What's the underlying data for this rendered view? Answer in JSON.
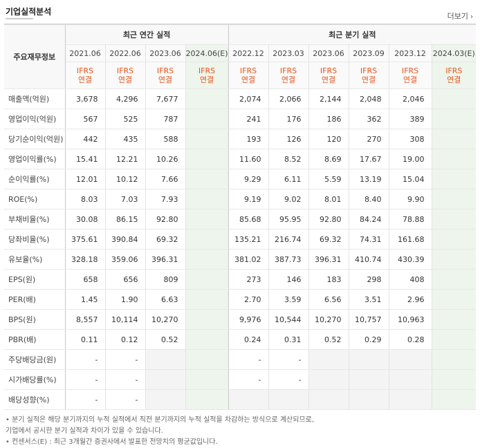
{
  "header": {
    "title": "기업실적분석",
    "more_label": "더보기",
    "more_arrow": "›"
  },
  "table": {
    "label_header": "주요재무정보",
    "annual_group": "최근 연간 실적",
    "quarter_group": "최근 분기 실적",
    "periods": [
      {
        "date": "2021.06",
        "std": "IFRS",
        "basis": "연결",
        "estimate": false,
        "group": "annual"
      },
      {
        "date": "2022.06",
        "std": "IFRS",
        "basis": "연결",
        "estimate": false,
        "group": "annual"
      },
      {
        "date": "2023.06",
        "std": "IFRS",
        "basis": "연결",
        "estimate": false,
        "group": "annual"
      },
      {
        "date": "2024.06(E)",
        "std": "IFRS",
        "basis": "연결",
        "estimate": true,
        "group": "annual"
      },
      {
        "date": "2022.12",
        "std": "IFRS",
        "basis": "연결",
        "estimate": false,
        "group": "quarter"
      },
      {
        "date": "2023.03",
        "std": "IFRS",
        "basis": "연결",
        "estimate": false,
        "group": "quarter"
      },
      {
        "date": "2023.06",
        "std": "IFRS",
        "basis": "연결",
        "estimate": false,
        "group": "quarter"
      },
      {
        "date": "2023.09",
        "std": "IFRS",
        "basis": "연결",
        "estimate": false,
        "group": "quarter"
      },
      {
        "date": "2023.12",
        "std": "IFRS",
        "basis": "연결",
        "estimate": false,
        "group": "quarter"
      },
      {
        "date": "2024.03(E)",
        "std": "IFRS",
        "basis": "연결",
        "estimate": true,
        "group": "quarter"
      }
    ],
    "rows": [
      {
        "label": "매출액(억원)",
        "values": [
          "3,678",
          "4,296",
          "7,677",
          "",
          "2,074",
          "2,066",
          "2,144",
          "2,048",
          "2,046",
          ""
        ]
      },
      {
        "label": "영업이익(억원)",
        "values": [
          "567",
          "525",
          "787",
          "",
          "241",
          "176",
          "186",
          "362",
          "389",
          ""
        ]
      },
      {
        "label": "당기순이익(억원)",
        "values": [
          "442",
          "435",
          "588",
          "",
          "193",
          "126",
          "120",
          "270",
          "308",
          ""
        ]
      },
      {
        "label": "영업이익률(%)",
        "values": [
          "15.41",
          "12.21",
          "10.26",
          "",
          "11.60",
          "8.52",
          "8.69",
          "17.67",
          "19.00",
          ""
        ]
      },
      {
        "label": "순이익률(%)",
        "values": [
          "12.01",
          "10.12",
          "7.66",
          "",
          "9.29",
          "6.11",
          "5.59",
          "13.19",
          "15.04",
          ""
        ]
      },
      {
        "label": "ROE(%)",
        "values": [
          "8.03",
          "7.03",
          "7.93",
          "",
          "9.19",
          "9.02",
          "8.01",
          "8.40",
          "9.90",
          ""
        ]
      },
      {
        "label": "부채비율(%)",
        "values": [
          "30.08",
          "86.15",
          "92.80",
          "",
          "85.68",
          "95.95",
          "92.80",
          "84.24",
          "78.88",
          ""
        ]
      },
      {
        "label": "당좌비율(%)",
        "values": [
          "375.61",
          "390.84",
          "69.32",
          "",
          "135.21",
          "216.74",
          "69.32",
          "74.31",
          "161.68",
          ""
        ]
      },
      {
        "label": "유보율(%)",
        "values": [
          "328.18",
          "359.06",
          "396.31",
          "",
          "381.02",
          "387.73",
          "396.31",
          "410.74",
          "430.39",
          ""
        ]
      },
      {
        "label": "EPS(원)",
        "values": [
          "658",
          "656",
          "809",
          "",
          "273",
          "146",
          "183",
          "298",
          "408",
          ""
        ]
      },
      {
        "label": "PER(배)",
        "values": [
          "1.45",
          "1.90",
          "6.63",
          "",
          "2.70",
          "3.59",
          "6.56",
          "3.51",
          "2.96",
          ""
        ]
      },
      {
        "label": "BPS(원)",
        "values": [
          "8,557",
          "10,114",
          "10,270",
          "",
          "9,976",
          "10,544",
          "10,270",
          "10,757",
          "10,963",
          ""
        ]
      },
      {
        "label": "PBR(배)",
        "values": [
          "0.11",
          "0.12",
          "0.52",
          "",
          "0.24",
          "0.31",
          "0.52",
          "0.29",
          "0.28",
          ""
        ]
      },
      {
        "label": "주당배당금(원)",
        "values": [
          "-",
          "-",
          "",
          "",
          "-",
          "-",
          "",
          "",
          "",
          ""
        ]
      },
      {
        "label": "시가배당률(%)",
        "values": [
          "-",
          "-",
          "",
          "",
          "-",
          "-",
          "",
          "",
          "",
          ""
        ]
      },
      {
        "label": "배당성향(%)",
        "values": [
          "-",
          "-",
          "",
          "",
          "",
          "",
          "",
          "",
          "",
          ""
        ]
      }
    ]
  },
  "notes": [
    "• 분기 실적은 해당 분기까지의 누적 실적에서 직전 분기까지의 누적 실적을 차감하는 방식으로 계산되므로,",
    "   기업에서 공시한 분기 실적과 차이가 있을 수 있습니다.",
    "• 컨센서스(E) : 최근 3개월간 증권사에서 발표한 전망치의 평균값입니다."
  ],
  "colors": {
    "ifrs_text": "#e8541c",
    "estimate_bg": "#eef5ec",
    "empty_bg": "#f4f4f4"
  }
}
